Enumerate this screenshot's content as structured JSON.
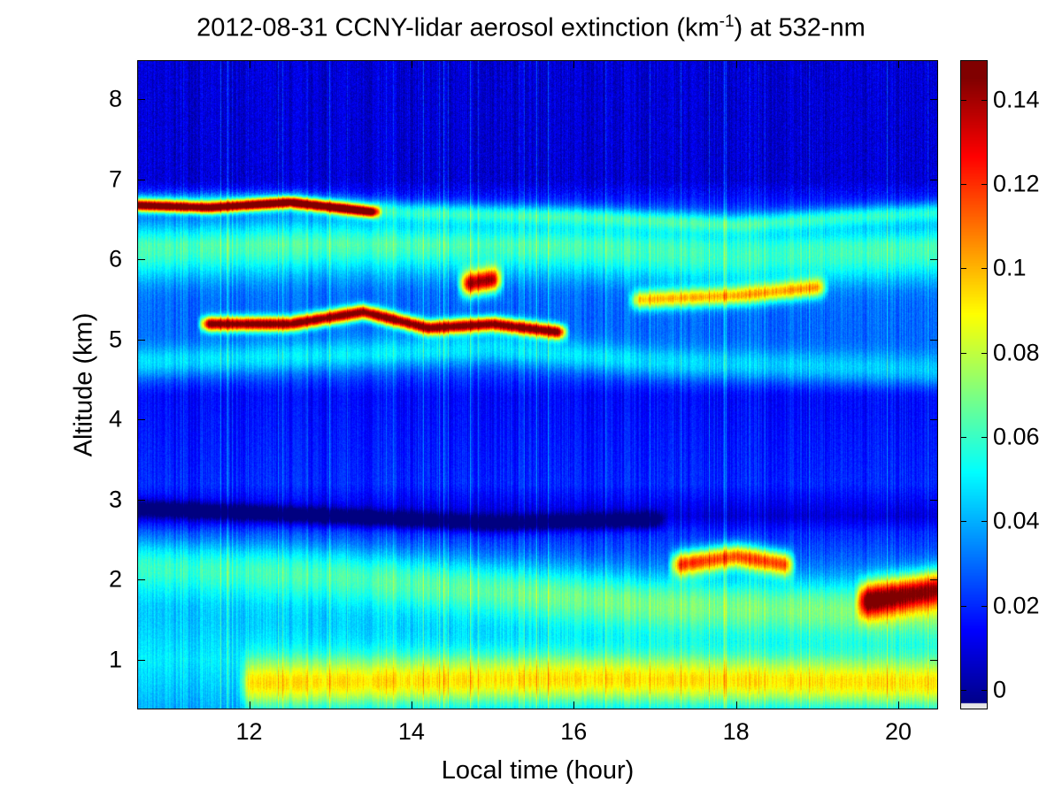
{
  "chart_data": {
    "type": "heatmap",
    "title_prefix": "2012-08-31 CCNY-lidar aerosol extinction (km",
    "title_sup": "-1",
    "title_suffix": ") at 532-nm",
    "xlabel": "Local time (hour)",
    "ylabel": "Altitude (km)",
    "xlim": [
      10.62,
      20.49
    ],
    "ylim": [
      0.38,
      8.49
    ],
    "xticks": [
      "12",
      "14",
      "16",
      "18",
      "20"
    ],
    "xtick_values": [
      12,
      14,
      16,
      18,
      20
    ],
    "yticks": [
      "1",
      "2",
      "3",
      "4",
      "5",
      "6",
      "7",
      "8"
    ],
    "ytick_values": [
      1,
      2,
      3,
      4,
      5,
      6,
      7,
      8
    ],
    "colorbar": {
      "colormap": "jet",
      "clim": [
        -0.0046,
        0.1494
      ],
      "ticks": [
        "0",
        "0.02",
        "0.04",
        "0.06",
        "0.08",
        "0.1",
        "0.12",
        "0.14"
      ],
      "tick_values": [
        0,
        0.02,
        0.04,
        0.06,
        0.08,
        0.1,
        0.12,
        0.14
      ]
    },
    "background_profile": [
      [
        0.38,
        0.04
      ],
      [
        1.0,
        0.05
      ],
      [
        1.8,
        0.04
      ],
      [
        2.6,
        0.02
      ],
      [
        2.8,
        0.008
      ],
      [
        3.2,
        0.02
      ],
      [
        4.3,
        0.015
      ],
      [
        4.8,
        0.03
      ],
      [
        5.6,
        0.03
      ],
      [
        6.2,
        0.04
      ],
      [
        7.0,
        0.008
      ],
      [
        8.49,
        0.008
      ]
    ],
    "layers": [
      {
        "name": "upper layer top",
        "path": [
          [
            10.62,
            6.72
          ],
          [
            12.5,
            6.72
          ],
          [
            14,
            6.6
          ],
          [
            16,
            6.55
          ],
          [
            18,
            6.45
          ],
          [
            19.5,
            6.55
          ],
          [
            20.49,
            6.6
          ]
        ],
        "thickness": 0.12,
        "value": 0.05
      },
      {
        "name": "upper red layer",
        "path": [
          [
            10.62,
            6.68
          ],
          [
            11.5,
            6.65
          ],
          [
            12.5,
            6.72
          ],
          [
            13.5,
            6.6
          ]
        ],
        "thickness": 0.07,
        "value": 0.14
      },
      {
        "name": "upper band",
        "path": [
          [
            10.62,
            6.1
          ],
          [
            13,
            6.2
          ],
          [
            16,
            6.15
          ],
          [
            18,
            6.0
          ],
          [
            20.49,
            6.1
          ]
        ],
        "thickness": 0.35,
        "value": 0.045
      },
      {
        "name": "5.2 km red layer",
        "path": [
          [
            11.5,
            5.2
          ],
          [
            12.5,
            5.2
          ],
          [
            13.4,
            5.35
          ],
          [
            14.2,
            5.15
          ],
          [
            15,
            5.2
          ],
          [
            15.8,
            5.1
          ]
        ],
        "thickness": 0.09,
        "value": 0.145
      },
      {
        "name": "blob",
        "path": [
          [
            14.7,
            5.7
          ],
          [
            15.0,
            5.75
          ]
        ],
        "thickness": 0.15,
        "value": 0.13
      },
      {
        "name": "yellow layer",
        "path": [
          [
            16.8,
            5.5
          ],
          [
            18,
            5.55
          ],
          [
            19,
            5.65
          ]
        ],
        "thickness": 0.12,
        "value": 0.09
      },
      {
        "name": "middle cyan band",
        "path": [
          [
            10.62,
            4.7
          ],
          [
            13,
            4.8
          ],
          [
            15,
            4.9
          ],
          [
            17,
            4.7
          ],
          [
            20.49,
            4.6
          ]
        ],
        "thickness": 0.2,
        "value": 0.04
      },
      {
        "name": "boundary layer",
        "path": [
          [
            12,
            0.7
          ],
          [
            16,
            0.75
          ],
          [
            20.49,
            0.7
          ]
        ],
        "thickness": 0.3,
        "value": 0.07
      },
      {
        "name": "residual layer",
        "path": [
          [
            10.62,
            2.2
          ],
          [
            13,
            2.1
          ],
          [
            15,
            1.9
          ],
          [
            17,
            1.7
          ],
          [
            20.49,
            1.6
          ]
        ],
        "thickness": 0.35,
        "value": 0.05
      },
      {
        "name": "orange plume",
        "path": [
          [
            17.3,
            2.2
          ],
          [
            18,
            2.3
          ],
          [
            18.6,
            2.2
          ]
        ],
        "thickness": 0.15,
        "value": 0.11
      },
      {
        "name": "orange evening layer",
        "path": [
          [
            19.6,
            1.75
          ],
          [
            20.49,
            1.9
          ]
        ],
        "thickness": 0.22,
        "value": 0.115
      },
      {
        "name": "dark band",
        "path": [
          [
            10.62,
            2.9
          ],
          [
            13,
            2.8
          ],
          [
            15,
            2.7
          ],
          [
            17,
            2.75
          ]
        ],
        "thickness": 0.1,
        "value": -0.03
      }
    ]
  }
}
